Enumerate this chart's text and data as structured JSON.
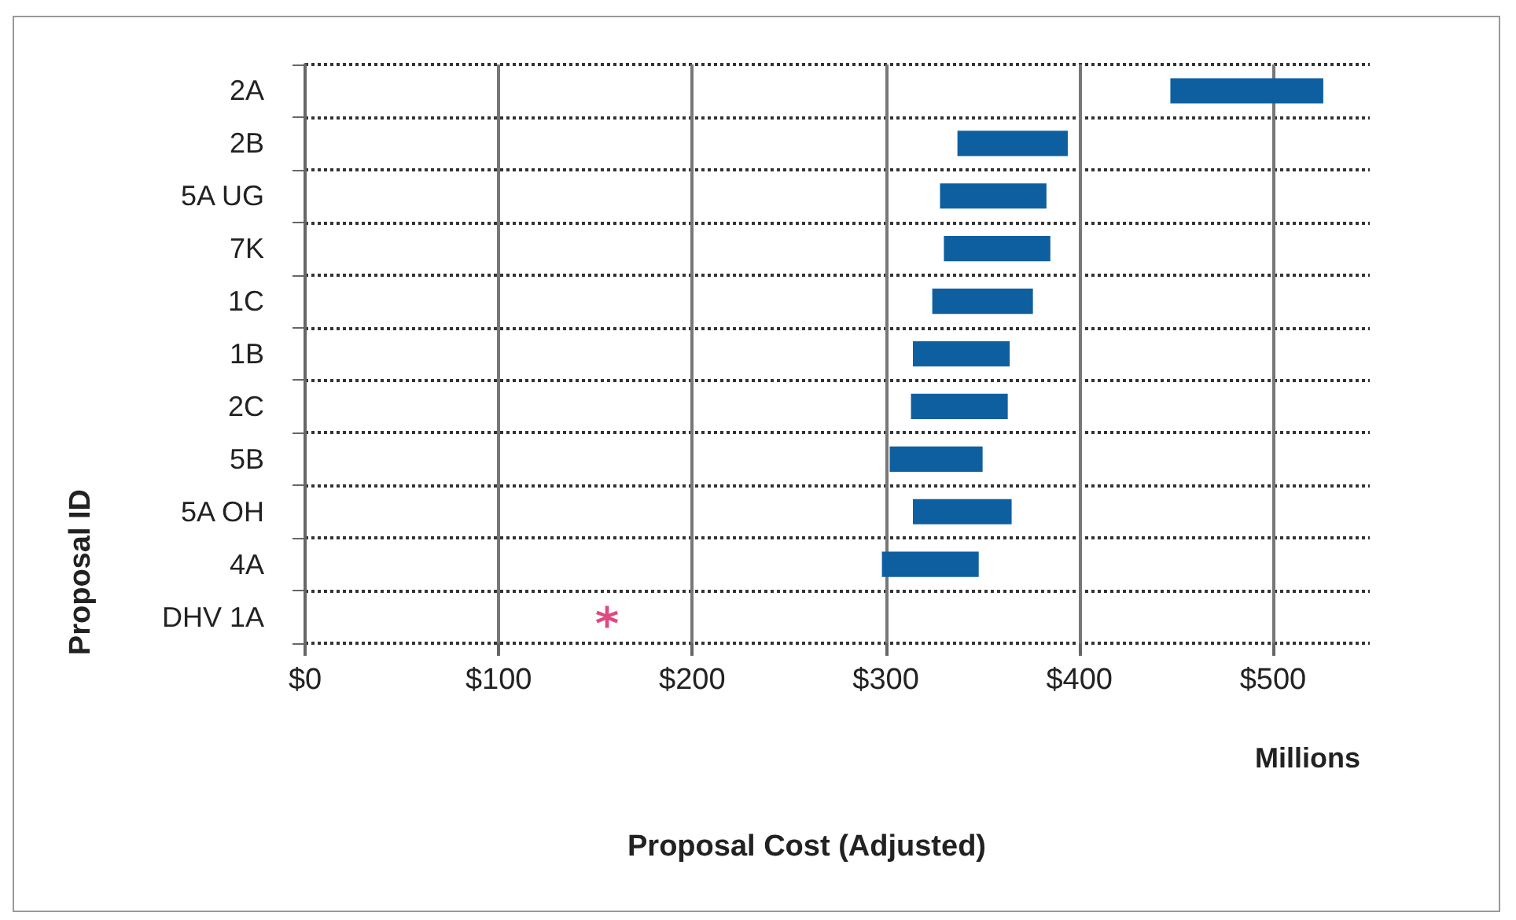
{
  "chart_data": {
    "type": "bar",
    "orientation": "horizontal",
    "categories": [
      "2A",
      "2B",
      "5A UG",
      "7K",
      "1C",
      "1B",
      "2C",
      "5B",
      "5A OH",
      "4A",
      "DHV 1A"
    ],
    "series": [
      {
        "color": "#0e5fa0",
        "values": [
          79,
          57,
          55,
          55,
          52,
          50,
          50,
          48,
          51,
          50,
          null
        ],
        "base": [
          447,
          337,
          328,
          330,
          324,
          314,
          313,
          302,
          314,
          298,
          null
        ]
      },
      {
        "type": "scatter",
        "color": "#d81b60",
        "marker": "star",
        "x": [
          "DHV 1A"
        ],
        "values": [
          156
        ]
      }
    ],
    "xlim": [
      0,
      550
    ],
    "xticks": [
      {
        "value": 0,
        "label": "$0"
      },
      {
        "value": 100,
        "label": "$100"
      },
      {
        "value": 200,
        "label": "$200"
      },
      {
        "value": 300,
        "label": "$300"
      },
      {
        "value": 400,
        "label": "$400"
      },
      {
        "value": 500,
        "label": "$500"
      }
    ],
    "xlabel": "Proposal Cost (Adjusted)",
    "ylabel": "Proposal ID",
    "annotations": [
      "Millions"
    ],
    "grid": true
  }
}
